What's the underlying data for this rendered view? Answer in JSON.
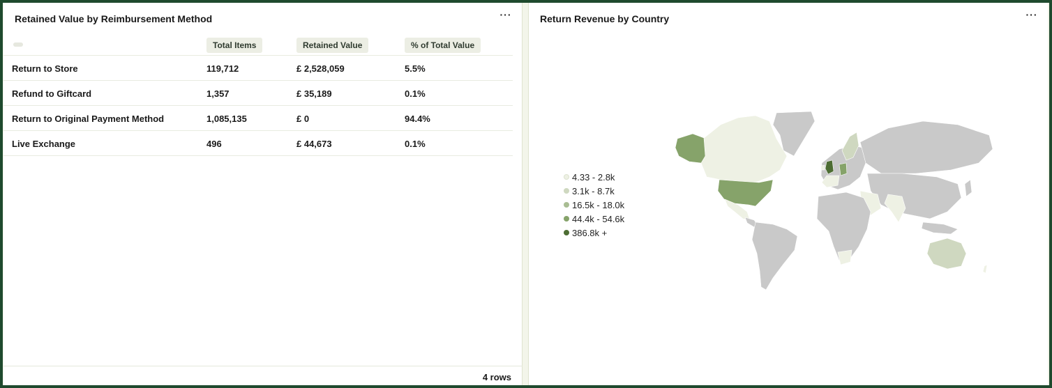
{
  "left_panel": {
    "title": "Retained Value by Reimbursement Method",
    "more": "···",
    "columns": [
      "Total Items",
      "Retained Value",
      "% of Total Value"
    ],
    "rows": [
      {
        "method": "Return to Store",
        "items": "119,712",
        "value": "£ 2,528,059",
        "pct": "5.5%"
      },
      {
        "method": "Refund to Giftcard",
        "items": "1,357",
        "value": "£ 35,189",
        "pct": "0.1%"
      },
      {
        "method": "Return to Original Payment Method",
        "items": "1,085,135",
        "value": "£ 0",
        "pct": "94.4%"
      },
      {
        "method": "Live Exchange",
        "items": "496",
        "value": "£ 44,673",
        "pct": "0.1%"
      }
    ],
    "row_count": "4 rows"
  },
  "right_panel": {
    "title": "Return Revenue by Country",
    "more": "···",
    "legend": [
      {
        "label": "4.33 - 2.8k",
        "color": "#eef1e4"
      },
      {
        "label": "3.1k - 8.7k",
        "color": "#cfd8c0"
      },
      {
        "label": "16.5k - 18.0k",
        "color": "#a9bd93"
      },
      {
        "label": "44.4k - 54.6k",
        "color": "#86a36a"
      },
      {
        "label": "386.8k +",
        "color": "#4d6d33"
      }
    ]
  }
}
